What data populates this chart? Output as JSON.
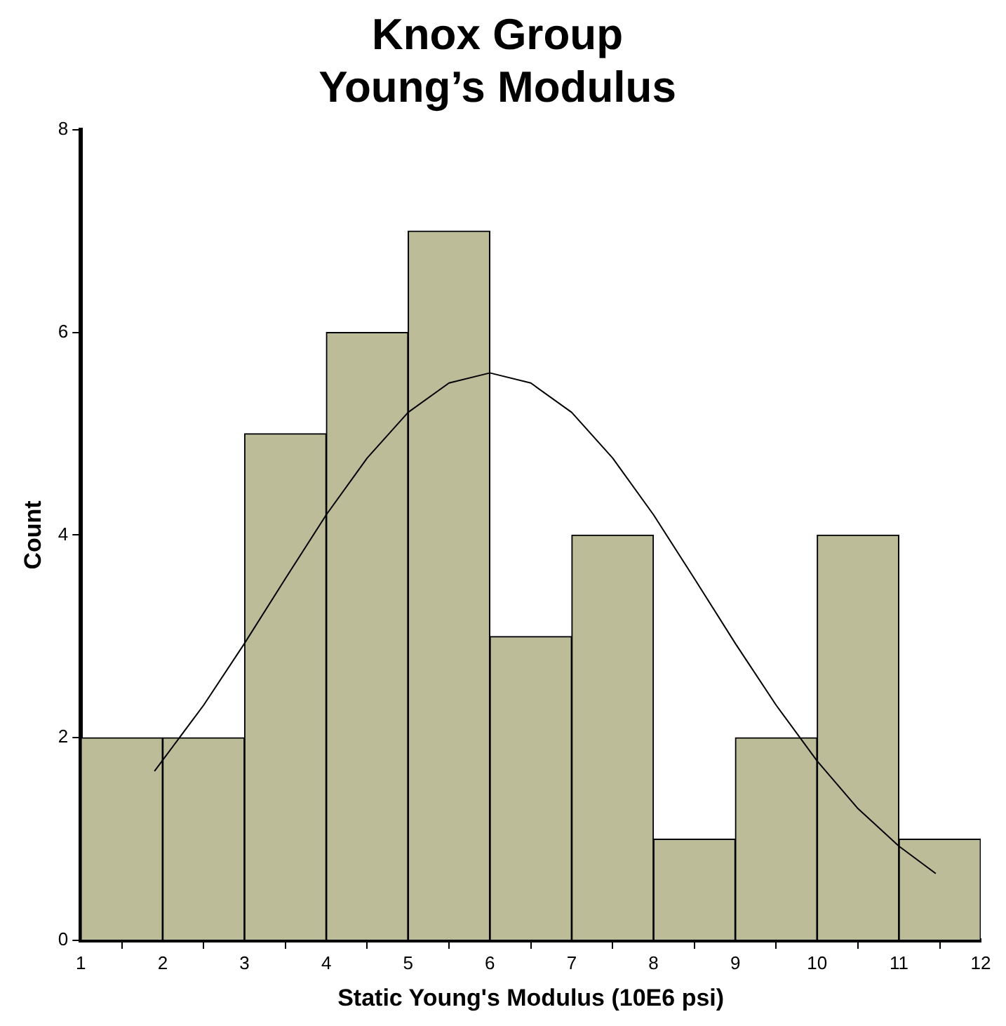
{
  "chart_data": {
    "type": "histogram",
    "title": "Knox Group\nYoung’s Modulus",
    "xlabel": "Static Young's Modulus (10E6 psi)",
    "ylabel": "Count",
    "bins": [
      1,
      2,
      3,
      4,
      5,
      6,
      7,
      8,
      9,
      10,
      11,
      12
    ],
    "values": [
      2,
      2,
      5,
      6,
      7,
      3,
      4,
      1,
      2,
      4,
      1
    ],
    "color": "#bcbc98",
    "series": [
      {
        "type": "line",
        "color": "#000000",
        "x": [
          1.9,
          2.5,
          3,
          3.5,
          4,
          4.5,
          5,
          5.5,
          6,
          6.5,
          7,
          7.5,
          8,
          8.5,
          9,
          9.5,
          10,
          10.5,
          11,
          11.45
        ],
        "values": [
          1.67,
          2.32,
          2.93,
          3.57,
          4.2,
          4.76,
          5.21,
          5.5,
          5.6,
          5.5,
          5.21,
          4.76,
          4.2,
          3.57,
          2.93,
          2.32,
          1.77,
          1.3,
          0.93,
          0.66
        ]
      }
    ],
    "xlim": [
      1,
      12
    ],
    "xticks": [
      1,
      2,
      3,
      4,
      5,
      6,
      7,
      8,
      9,
      10,
      11,
      12
    ],
    "ylim": [
      0,
      8
    ],
    "yticks": [
      0,
      2,
      4,
      6,
      8
    ],
    "grid": false,
    "legend": false,
    "marker": "none",
    "line_style": "solid"
  }
}
